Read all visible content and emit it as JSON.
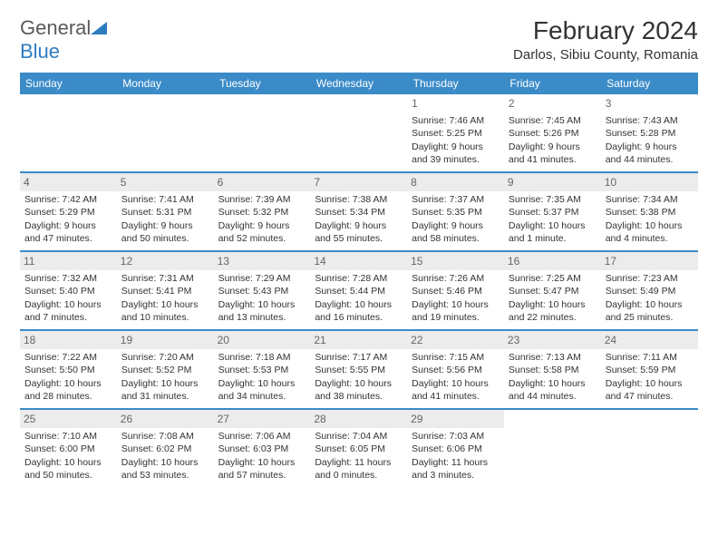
{
  "brand": {
    "part1": "General",
    "part2": "Blue"
  },
  "title": "February 2024",
  "location": "Darlos, Sibiu County, Romania",
  "colors": {
    "header_blue": "#3b8bc9",
    "logo_blue": "#2e7cc0",
    "text": "#333333",
    "daynum_bg": "#ececec",
    "daynum_fg": "#666666"
  },
  "weekdays": [
    "Sunday",
    "Monday",
    "Tuesday",
    "Wednesday",
    "Thursday",
    "Friday",
    "Saturday"
  ],
  "weeks": [
    [
      null,
      null,
      null,
      null,
      {
        "n": "1",
        "shade": false,
        "sr": "Sunrise: 7:46 AM",
        "ss": "Sunset: 5:25 PM",
        "d1": "Daylight: 9 hours",
        "d2": "and 39 minutes."
      },
      {
        "n": "2",
        "shade": false,
        "sr": "Sunrise: 7:45 AM",
        "ss": "Sunset: 5:26 PM",
        "d1": "Daylight: 9 hours",
        "d2": "and 41 minutes."
      },
      {
        "n": "3",
        "shade": false,
        "sr": "Sunrise: 7:43 AM",
        "ss": "Sunset: 5:28 PM",
        "d1": "Daylight: 9 hours",
        "d2": "and 44 minutes."
      }
    ],
    [
      {
        "n": "4",
        "shade": true,
        "sr": "Sunrise: 7:42 AM",
        "ss": "Sunset: 5:29 PM",
        "d1": "Daylight: 9 hours",
        "d2": "and 47 minutes."
      },
      {
        "n": "5",
        "shade": true,
        "sr": "Sunrise: 7:41 AM",
        "ss": "Sunset: 5:31 PM",
        "d1": "Daylight: 9 hours",
        "d2": "and 50 minutes."
      },
      {
        "n": "6",
        "shade": true,
        "sr": "Sunrise: 7:39 AM",
        "ss": "Sunset: 5:32 PM",
        "d1": "Daylight: 9 hours",
        "d2": "and 52 minutes."
      },
      {
        "n": "7",
        "shade": true,
        "sr": "Sunrise: 7:38 AM",
        "ss": "Sunset: 5:34 PM",
        "d1": "Daylight: 9 hours",
        "d2": "and 55 minutes."
      },
      {
        "n": "8",
        "shade": true,
        "sr": "Sunrise: 7:37 AM",
        "ss": "Sunset: 5:35 PM",
        "d1": "Daylight: 9 hours",
        "d2": "and 58 minutes."
      },
      {
        "n": "9",
        "shade": true,
        "sr": "Sunrise: 7:35 AM",
        "ss": "Sunset: 5:37 PM",
        "d1": "Daylight: 10 hours",
        "d2": "and 1 minute."
      },
      {
        "n": "10",
        "shade": true,
        "sr": "Sunrise: 7:34 AM",
        "ss": "Sunset: 5:38 PM",
        "d1": "Daylight: 10 hours",
        "d2": "and 4 minutes."
      }
    ],
    [
      {
        "n": "11",
        "shade": true,
        "sr": "Sunrise: 7:32 AM",
        "ss": "Sunset: 5:40 PM",
        "d1": "Daylight: 10 hours",
        "d2": "and 7 minutes."
      },
      {
        "n": "12",
        "shade": true,
        "sr": "Sunrise: 7:31 AM",
        "ss": "Sunset: 5:41 PM",
        "d1": "Daylight: 10 hours",
        "d2": "and 10 minutes."
      },
      {
        "n": "13",
        "shade": true,
        "sr": "Sunrise: 7:29 AM",
        "ss": "Sunset: 5:43 PM",
        "d1": "Daylight: 10 hours",
        "d2": "and 13 minutes."
      },
      {
        "n": "14",
        "shade": true,
        "sr": "Sunrise: 7:28 AM",
        "ss": "Sunset: 5:44 PM",
        "d1": "Daylight: 10 hours",
        "d2": "and 16 minutes."
      },
      {
        "n": "15",
        "shade": true,
        "sr": "Sunrise: 7:26 AM",
        "ss": "Sunset: 5:46 PM",
        "d1": "Daylight: 10 hours",
        "d2": "and 19 minutes."
      },
      {
        "n": "16",
        "shade": true,
        "sr": "Sunrise: 7:25 AM",
        "ss": "Sunset: 5:47 PM",
        "d1": "Daylight: 10 hours",
        "d2": "and 22 minutes."
      },
      {
        "n": "17",
        "shade": true,
        "sr": "Sunrise: 7:23 AM",
        "ss": "Sunset: 5:49 PM",
        "d1": "Daylight: 10 hours",
        "d2": "and 25 minutes."
      }
    ],
    [
      {
        "n": "18",
        "shade": true,
        "sr": "Sunrise: 7:22 AM",
        "ss": "Sunset: 5:50 PM",
        "d1": "Daylight: 10 hours",
        "d2": "and 28 minutes."
      },
      {
        "n": "19",
        "shade": true,
        "sr": "Sunrise: 7:20 AM",
        "ss": "Sunset: 5:52 PM",
        "d1": "Daylight: 10 hours",
        "d2": "and 31 minutes."
      },
      {
        "n": "20",
        "shade": true,
        "sr": "Sunrise: 7:18 AM",
        "ss": "Sunset: 5:53 PM",
        "d1": "Daylight: 10 hours",
        "d2": "and 34 minutes."
      },
      {
        "n": "21",
        "shade": true,
        "sr": "Sunrise: 7:17 AM",
        "ss": "Sunset: 5:55 PM",
        "d1": "Daylight: 10 hours",
        "d2": "and 38 minutes."
      },
      {
        "n": "22",
        "shade": true,
        "sr": "Sunrise: 7:15 AM",
        "ss": "Sunset: 5:56 PM",
        "d1": "Daylight: 10 hours",
        "d2": "and 41 minutes."
      },
      {
        "n": "23",
        "shade": true,
        "sr": "Sunrise: 7:13 AM",
        "ss": "Sunset: 5:58 PM",
        "d1": "Daylight: 10 hours",
        "d2": "and 44 minutes."
      },
      {
        "n": "24",
        "shade": true,
        "sr": "Sunrise: 7:11 AM",
        "ss": "Sunset: 5:59 PM",
        "d1": "Daylight: 10 hours",
        "d2": "and 47 minutes."
      }
    ],
    [
      {
        "n": "25",
        "shade": true,
        "sr": "Sunrise: 7:10 AM",
        "ss": "Sunset: 6:00 PM",
        "d1": "Daylight: 10 hours",
        "d2": "and 50 minutes."
      },
      {
        "n": "26",
        "shade": true,
        "sr": "Sunrise: 7:08 AM",
        "ss": "Sunset: 6:02 PM",
        "d1": "Daylight: 10 hours",
        "d2": "and 53 minutes."
      },
      {
        "n": "27",
        "shade": true,
        "sr": "Sunrise: 7:06 AM",
        "ss": "Sunset: 6:03 PM",
        "d1": "Daylight: 10 hours",
        "d2": "and 57 minutes."
      },
      {
        "n": "28",
        "shade": true,
        "sr": "Sunrise: 7:04 AM",
        "ss": "Sunset: 6:05 PM",
        "d1": "Daylight: 11 hours",
        "d2": "and 0 minutes."
      },
      {
        "n": "29",
        "shade": true,
        "sr": "Sunrise: 7:03 AM",
        "ss": "Sunset: 6:06 PM",
        "d1": "Daylight: 11 hours",
        "d2": "and 3 minutes."
      },
      null,
      null
    ]
  ]
}
